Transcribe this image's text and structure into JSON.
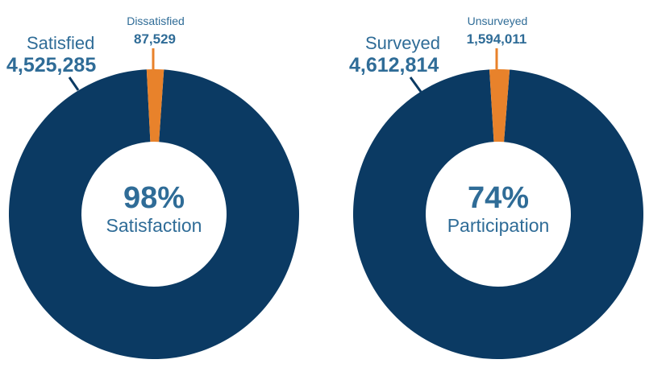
{
  "colors": {
    "primary": "#0b3a63",
    "accent": "#e8822b",
    "label": "#2f6c97",
    "background": "#ffffff"
  },
  "chart_data": [
    {
      "type": "pie",
      "style": "donut",
      "center_value": "98%",
      "center_label": "Satisfaction",
      "slices": [
        {
          "label": "Satisfied",
          "value_text": "4,525,285",
          "value": 4525285
        },
        {
          "label": "Dissatisfied",
          "value_text": "87,529",
          "value": 87529
        }
      ]
    },
    {
      "type": "pie",
      "style": "donut",
      "center_value": "74%",
      "center_label": "Participation",
      "slices": [
        {
          "label": "Surveyed",
          "value_text": "4,612,814",
          "value": 4612814
        },
        {
          "label": "Unsurveyed",
          "value_text": "1,594,011",
          "value": 1594011
        }
      ]
    }
  ]
}
